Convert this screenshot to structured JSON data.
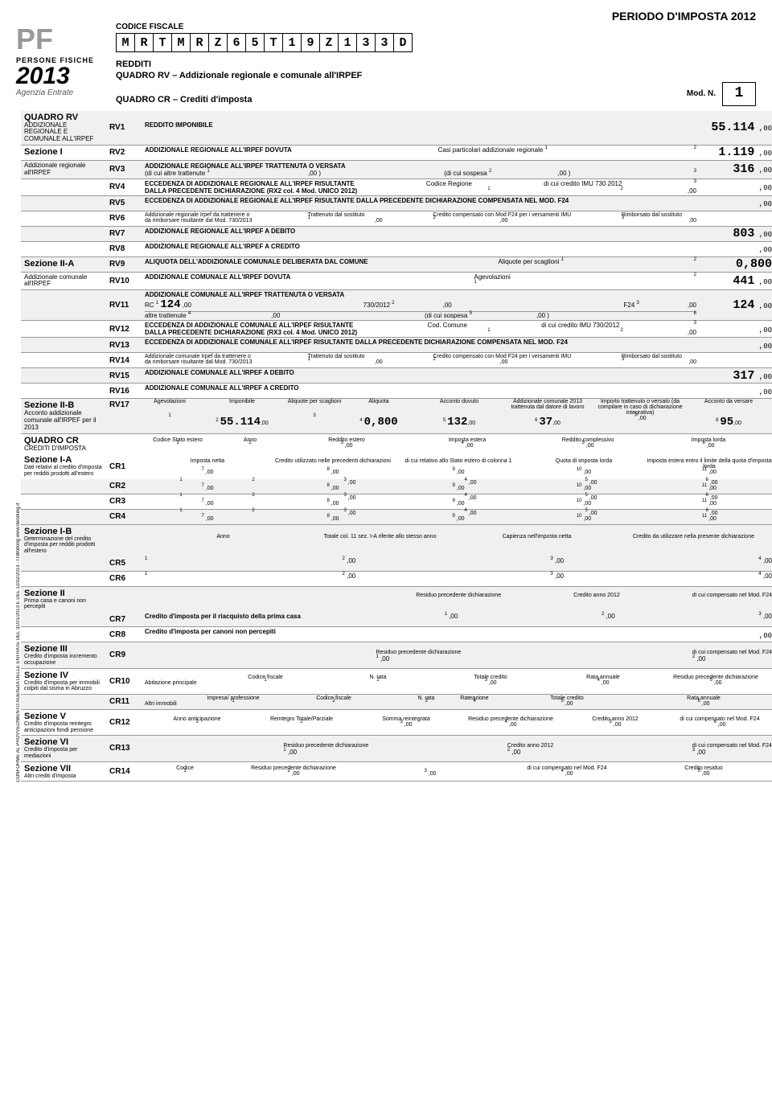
{
  "period": "PERIODO D'IMPOSTA 2012",
  "logo_top": "PF",
  "logo_mid": "PERSONE FISICHE",
  "logo_year": "2013",
  "agency": "Agenzia Entrate",
  "cf_label": "CODICE FISCALE",
  "cf": [
    "M",
    "R",
    "T",
    "M",
    "R",
    "Z",
    "6",
    "5",
    "T",
    "1",
    "9",
    "Z",
    "1",
    "3",
    "3",
    "D"
  ],
  "title1": "REDDITI",
  "title2": "QUADRO RV – Addizionale regionale e comunale all'IRPEF",
  "title3": "QUADRO CR – Crediti d'imposta",
  "modn_label": "Mod. N.",
  "modn": "1",
  "quadro_rv": {
    "title": "QUADRO RV",
    "sub": "ADDIZIONALE REGIONALE E COMUNALE ALL'IRPEF"
  },
  "sez1": {
    "title": "Sezione I",
    "sub": "Addizionale regionale all'IRPEF"
  },
  "sez2a": {
    "title": "Sezione II-A",
    "sub": "Addizionale comunale all'IRPEF"
  },
  "sez2b": {
    "title": "Sezione II-B",
    "sub": "Acconto addizionale comunale all'IRPEF per il 2013"
  },
  "quadro_cr": {
    "title": "QUADRO CR",
    "sub": "CREDITI D'IMPOSTA"
  },
  "sez1a": {
    "title": "Sezione I-A",
    "sub": "Dati relativi al credito d'imposta per redditi prodotti all'estero"
  },
  "sez1b": {
    "title": "Sezione I-B",
    "sub": "Determinazione del credito d'imposta per redditi prodotti all'estero"
  },
  "sez2": {
    "title": "Sezione II",
    "sub": "Prima casa e canoni non percepiti"
  },
  "sez3": {
    "title": "Sezione III",
    "sub": "Credito d'imposta incremento occupazione"
  },
  "sez4": {
    "title": "Sezione IV",
    "sub": "Credito d'imposta per immobili colpiti dal sisma in Abruzzo"
  },
  "sez5": {
    "title": "Sezione V",
    "sub": "Credito d'imposta reintegro anticipazioni fondi pensione"
  },
  "sez6": {
    "title": "Sezione VI",
    "sub": "Credito d'imposta per mediazioni"
  },
  "sez7": {
    "title": "Sezione VII",
    "sub": "Altri crediti d'imposta"
  },
  "rv1": {
    "desc": "REDDITO IMPONIBILE",
    "val": "55.114"
  },
  "rv2": {
    "desc": "ADDIZIONALE REGIONALE ALL'IRPEF DOVUTA",
    "mid": "Casi particolari addizionale regionale",
    "val": "1.119"
  },
  "rv3": {
    "top": "ADDIZIONALE REGIONALE ALL'IRPEF TRATTENUTA O VERSATA",
    "a": "(di cui altre trattenute",
    "b": "(di cui sospesa",
    "val": "316"
  },
  "rv4": {
    "top": "ECCEDENZA DI ADDIZIONALE REGIONALE ALL'IRPEF RISULTANTE",
    "mid": "Codice Regione",
    "r": "di cui credito IMU 730 2012",
    "bot": "DALLA PRECEDENTE DICHIARAZIONE      (RX2 col. 4 Mod. UNICO 2012)"
  },
  "rv5": {
    "desc": "ECCEDENZA DI ADDIZIONALE REGIONALE ALL'IRPEF RISULTANTE DALLA PRECEDENTE DICHIARAZIONE COMPENSATA NEL MOD. F24"
  },
  "rv6": {
    "a": "Addizionale regionale Irpef da trattenere o da rimborsare risultante dal Mod. 730/2013",
    "b": "Trattenuto dal sostituto",
    "c": "Credito compensato con Mod F24 per i versamenti IMU",
    "d": "Rimborsato dal sostituto"
  },
  "rv7": {
    "desc": "ADDIZIONALE REGIONALE ALL'IRPEF A DEBITO",
    "val": "803"
  },
  "rv8": {
    "desc": "ADDIZIONALE REGIONALE ALL'IRPEF A CREDITO"
  },
  "rv9": {
    "desc": "ALIQUOTA DELL'ADDIZIONALE COMUNALE DELIBERATA DAL COMUNE",
    "mid": "Aliquote per scaglioni",
    "val": "0,800"
  },
  "rv10": {
    "desc": "ADDIZIONALE COMUNALE ALL'IRPEF DOVUTA",
    "mid": "Agevolazioni",
    "val": "441"
  },
  "rv11": {
    "top": "ADDIZIONALE COMUNALE ALL'IRPEF TRATTENUTA O VERSATA",
    "rc": "RC",
    "rcval": "124",
    "b": "730/2012",
    "c": "F24",
    "d": "altre trattenute",
    "e": "(di cui sospesa",
    "val": "124"
  },
  "rv12": {
    "top": "ECCEDENZA DI ADDIZIONALE COMUNALE ALL'IRPEF RISULTANTE",
    "mid": "Cod. Comune",
    "r": "di cui credito IMU 730/2012",
    "bot": "DALLA PRECEDENTE DICHIARAZIONE      (RX3 col. 4 Mod. UNICO 2012)"
  },
  "rv13": {
    "desc": "ECCEDENZA DI ADDIZIONALE COMUNALE ALL'IRPEF RISULTANTE DALLA PRECEDENTE DICHIARAZIONE COMPENSATA NEL MOD. F24"
  },
  "rv14": {
    "a": "Addizionale comunale Irpef da trattenere o da rimborsare risultante dal Mod. 730/2013",
    "b": "Trattenuto dal sostituto",
    "c": "Credito compensato con Mod F24 per i versamenti IMU",
    "d": "Rimborsato dal sostituto"
  },
  "rv15": {
    "desc": "ADDIZIONALE COMUNALE ALL'IRPEF A DEBITO",
    "val": "317"
  },
  "rv16": {
    "desc": "ADDIZIONALE COMUNALE ALL'IRPEF A CREDITO"
  },
  "rv17": {
    "h": [
      "Agevolazioni",
      "Imponibile",
      "Aliquote per scaglioni",
      "Aliquota",
      "Acconto dovuto",
      "Addizionale comunale 2013 trattenuta dal datore di lavoro",
      "Importo trattenuto o versato (da compilare in caso di dichiarazione integrativa)",
      "Acconto da versare"
    ],
    "v2": "55.114",
    "v4": "0,800",
    "v5": "132",
    "v6": "37",
    "v8": "95"
  },
  "cr_head": {
    "h": [
      "Codice Stato estero",
      "Anno",
      "Reddito estero",
      "Imposta estera",
      "Reddito complessivo",
      "Imposta lorda"
    ],
    "h2": [
      "Imposta netta",
      "Credito utilizzato nelle precedenti dichiarazioni",
      "di cui relativo allo Stato estero di colonna 1",
      "Quota di imposta lorda",
      "Imposta estera entro il limite della quota d'imposta lorda"
    ]
  },
  "cr5h": [
    "Anno",
    "Totale col. 11 sez. I-A riferite allo stesso anno",
    "Capienza nell'imposta netta",
    "Credito da utilizzare nella presente dichiarazione"
  ],
  "cr7": {
    "desc": "Credito d'imposta per il riacquisto della prima casa",
    "h": [
      "Residuo precedente dichiarazione",
      "Credito anno 2012",
      "di cui compensato nel Mod. F24"
    ]
  },
  "cr8": {
    "desc": "Credito d'imposta per canoni non percepiti"
  },
  "cr9h": [
    "Residuo precedente dichiarazione",
    "di cui compensato nel Mod. F24"
  ],
  "cr10": {
    "a": "Abitazione principale",
    "h": [
      "Codice fiscale",
      "N. rata",
      "Totale credito",
      "Rata annuale",
      "Residuo precedente dichiarazione"
    ]
  },
  "cr11": {
    "a": "Altri immobili",
    "b": "Impresa/ professione",
    "h": [
      "Codice fiscale",
      "N. rata",
      "Rateazione",
      "Totale credito",
      "Rata annuale"
    ]
  },
  "cr12": {
    "h": [
      "Anno anticipazione",
      "Reintegro Totale/Parziale",
      "Somma reintegrata",
      "Residuo precedente dichiarazione",
      "Credito anno 2012",
      "di cui compensato nel Mod. F24"
    ]
  },
  "cr13": {
    "h": [
      "Residuo precedente dichiarazione",
      "Credito anno 2012",
      "di cui compensato nel Mod. F24"
    ]
  },
  "cr14": {
    "h": [
      "Codice",
      "Residuo precedente dichiarazione",
      "di cui compensato nel Mod. F24",
      "Credito residuo"
    ]
  },
  "side": "CONFORME AL PROVVEDIMENTO AGENZIA DELLE ENTRATE DEL 31/01/2013 E DEL 12/02/2013 - ITWorking  www.itworking.it"
}
